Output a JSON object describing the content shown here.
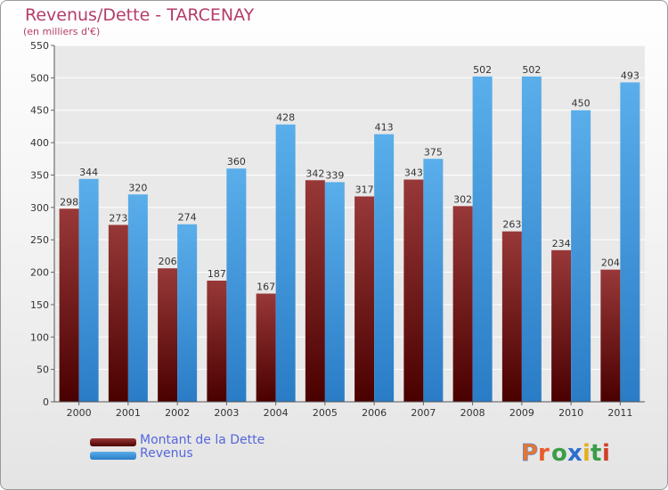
{
  "title": "Revenus/Dette - TARCENAY",
  "subtitle": "(en milliers d'€)",
  "legend": {
    "debt_label": "Montant de la Dette",
    "revenue_label": "Revenus"
  },
  "logo": {
    "text": "Proxiti"
  },
  "colors": {
    "debt": "#7a1a1a",
    "revenue": "#3d9ce0",
    "title": "#b53c6a",
    "legend_text": "#5566dd"
  },
  "chart_data": {
    "type": "bar",
    "categories": [
      "2000",
      "2001",
      "2002",
      "2003",
      "2004",
      "2005",
      "2006",
      "2007",
      "2008",
      "2009",
      "2010",
      "2011"
    ],
    "series": [
      {
        "name": "Montant de la Dette",
        "values": [
          298,
          273,
          206,
          187,
          167,
          342,
          317,
          343,
          302,
          263,
          234,
          204
        ]
      },
      {
        "name": "Revenus",
        "values": [
          344,
          320,
          274,
          360,
          428,
          339,
          413,
          375,
          502,
          502,
          450,
          493
        ]
      }
    ],
    "yticks": [
      0,
      50,
      100,
      150,
      200,
      250,
      300,
      350,
      400,
      450,
      500,
      550
    ],
    "ylim": [
      0,
      550
    ],
    "grid": true
  }
}
